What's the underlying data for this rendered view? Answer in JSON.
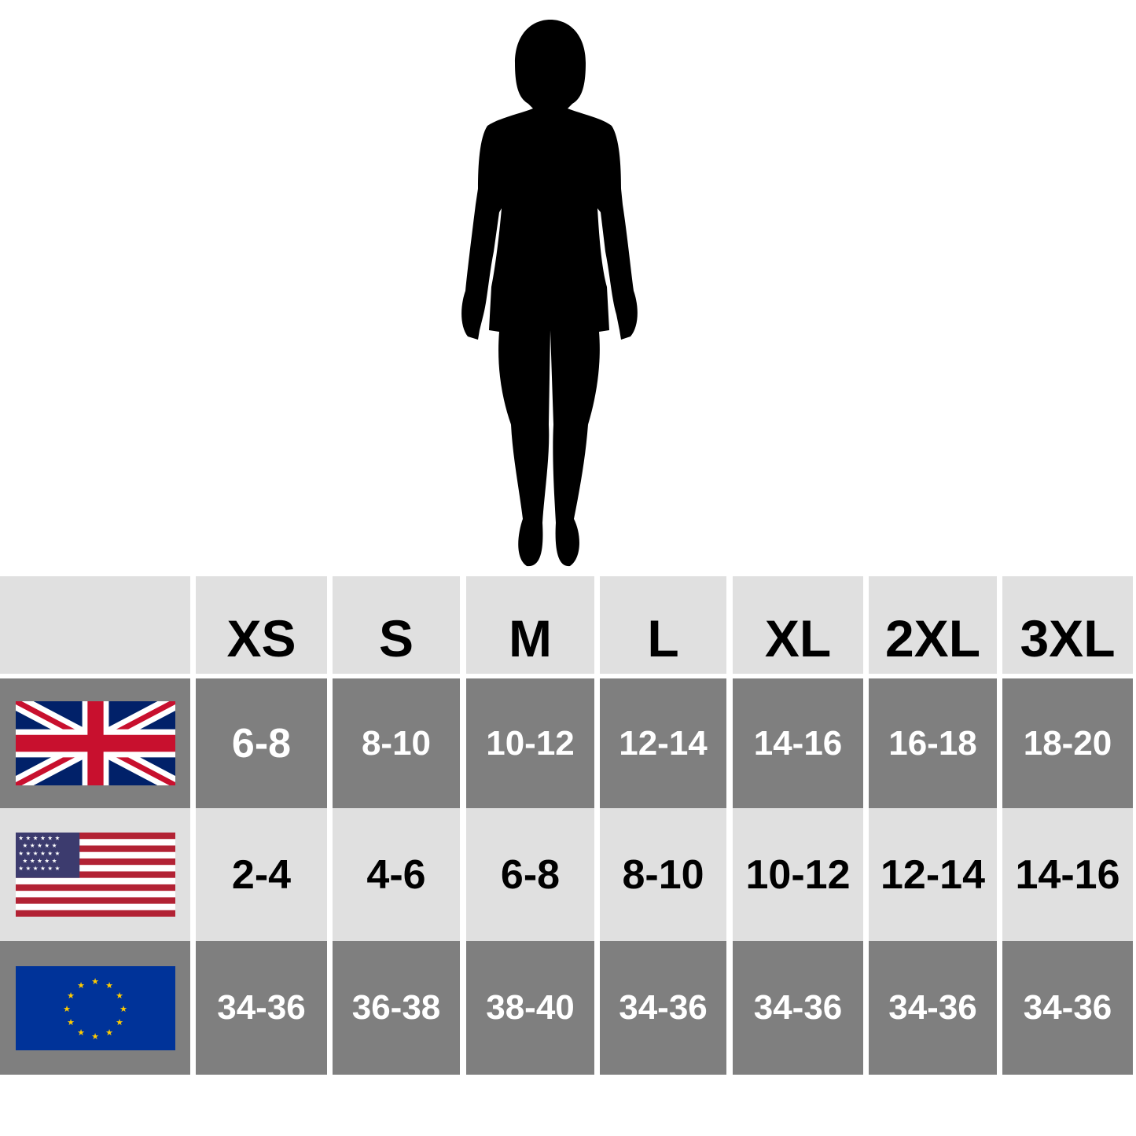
{
  "sizes": [
    "XS",
    "S",
    "M",
    "L",
    "XL",
    "2XL",
    "3XL"
  ],
  "rows": [
    {
      "region": "UK",
      "flag_icon": "uk-flag-icon",
      "values": [
        "6-8",
        "8-10",
        "10-12",
        "12-14",
        "14-16",
        "16-18",
        "18-20"
      ]
    },
    {
      "region": "US",
      "flag_icon": "us-flag-icon",
      "values": [
        "2-4",
        "4-6",
        "6-8",
        "8-10",
        "10-12",
        "12-14",
        "14-16"
      ]
    },
    {
      "region": "EU",
      "flag_icon": "eu-flag-icon",
      "values": [
        "34-36",
        "36-38",
        "38-40",
        "34-36",
        "34-36",
        "34-36",
        "34-36"
      ]
    }
  ],
  "colors": {
    "header_bg": "#e0e0e0",
    "dark_row": "#7f7f7f",
    "light_row": "#e0e0e0"
  }
}
